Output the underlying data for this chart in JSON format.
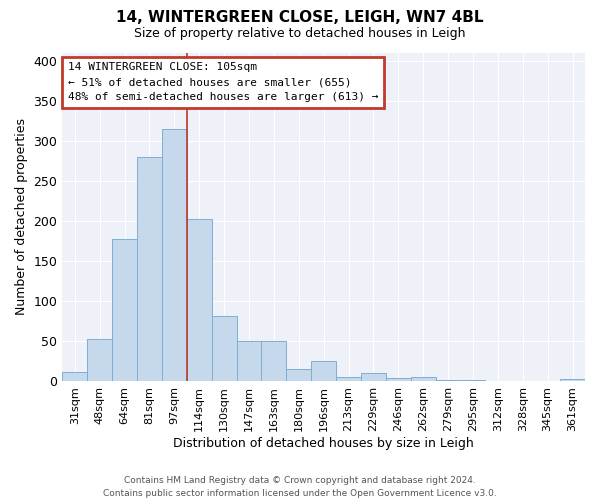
{
  "title": "14, WINTERGREEN CLOSE, LEIGH, WN7 4BL",
  "subtitle": "Size of property relative to detached houses in Leigh",
  "xlabel": "Distribution of detached houses by size in Leigh",
  "ylabel": "Number of detached properties",
  "categories": [
    "31sqm",
    "48sqm",
    "64sqm",
    "81sqm",
    "97sqm",
    "114sqm",
    "130sqm",
    "147sqm",
    "163sqm",
    "180sqm",
    "196sqm",
    "213sqm",
    "229sqm",
    "246sqm",
    "262sqm",
    "279sqm",
    "295sqm",
    "312sqm",
    "328sqm",
    "345sqm",
    "361sqm"
  ],
  "values": [
    12,
    53,
    177,
    280,
    315,
    203,
    81,
    51,
    51,
    15,
    25,
    6,
    10,
    4,
    6,
    2,
    2,
    1,
    1,
    1,
    3
  ],
  "bar_color": "#c5d8ec",
  "bar_edge_color": "#7bafd4",
  "vline_x_index": 4.5,
  "vline_color": "#c0392b",
  "annotation_box_line1": "14 WINTERGREEN CLOSE: 105sqm",
  "annotation_box_line2": "← 51% of detached houses are smaller (655)",
  "annotation_box_line3": "48% of semi-detached houses are larger (613) →",
  "annotation_box_color": "white",
  "annotation_box_edge_color": "#c0392b",
  "ylim": [
    0,
    410
  ],
  "yticks": [
    0,
    50,
    100,
    150,
    200,
    250,
    300,
    350,
    400
  ],
  "footnote_line1": "Contains HM Land Registry data © Crown copyright and database right 2024.",
  "footnote_line2": "Contains public sector information licensed under the Open Government Licence v3.0.",
  "fig_width": 6.0,
  "fig_height": 5.0,
  "background_color": "#eef2f8",
  "grid_color": "#ffffff",
  "title_fontsize": 11,
  "subtitle_fontsize": 9
}
